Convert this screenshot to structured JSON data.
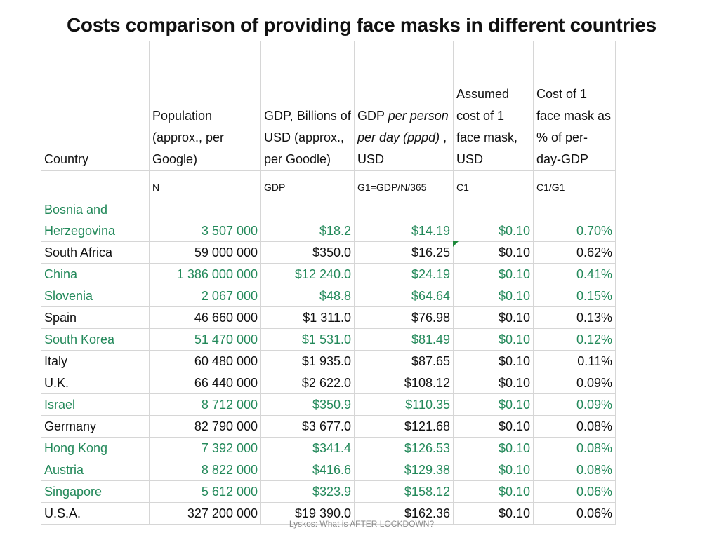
{
  "title": "Costs comparison of providing face masks in different countries",
  "headers": {
    "country": "Country",
    "population": "Population (approx., per Google)",
    "gdp": "GDP, Billions of USD (approx., per Goodle)",
    "gdp_pppd_a": "GDP ",
    "gdp_pppd_b": "per person per day (pppd)",
    "gdp_pppd_c": " , USD",
    "mask_cost": "Assumed cost of 1 face mask, USD",
    "pct": "Cost of 1 face mask as % of per-day-GDP"
  },
  "formulas": [
    "",
    "N",
    "GDP",
    "G1=GDP/N/365",
    "C1",
    "C1/G1"
  ],
  "colors": {
    "green": "#23895a",
    "black": "#111111"
  },
  "rows": [
    {
      "country": "Bosnia and Herzegovina",
      "population": "3 507 000",
      "gdp": "$18.2",
      "pppd": "$14.19",
      "cost": "$0.10",
      "pct": "0.70%",
      "color": "green"
    },
    {
      "country": "South Africa",
      "population": "59 000 000",
      "gdp": "$350.0",
      "pppd": "$16.25",
      "cost": "$0.10",
      "pct": "0.62%",
      "color": "black"
    },
    {
      "country": "China",
      "population": "1 386 000 000",
      "gdp": "$12 240.0",
      "pppd": "$24.19",
      "cost": "$0.10",
      "pct": "0.41%",
      "color": "green"
    },
    {
      "country": "Slovenia",
      "population": "2 067 000",
      "gdp": "$48.8",
      "pppd": "$64.64",
      "cost": "$0.10",
      "pct": "0.15%",
      "color": "green"
    },
    {
      "country": "Spain",
      "population": "46 660 000",
      "gdp": "$1 311.0",
      "pppd": "$76.98",
      "cost": "$0.10",
      "pct": "0.13%",
      "color": "black"
    },
    {
      "country": "South Korea",
      "population": "51 470 000",
      "gdp": "$1 531.0",
      "pppd": "$81.49",
      "cost": "$0.10",
      "pct": "0.12%",
      "color": "green"
    },
    {
      "country": "Italy",
      "population": "60 480 000",
      "gdp": "$1 935.0",
      "pppd": "$87.65",
      "cost": "$0.10",
      "pct": "0.11%",
      "color": "black"
    },
    {
      "country": "U.K.",
      "population": "66 440 000",
      "gdp": "$2 622.0",
      "pppd": "$108.12",
      "cost": "$0.10",
      "pct": "0.09%",
      "color": "black"
    },
    {
      "country": "Israel",
      "population": "8 712 000",
      "gdp": "$350.9",
      "pppd": "$110.35",
      "cost": "$0.10",
      "pct": "0.09%",
      "color": "green"
    },
    {
      "country": "Germany",
      "population": "82 790 000",
      "gdp": "$3 677.0",
      "pppd": "$121.68",
      "cost": "$0.10",
      "pct": "0.08%",
      "color": "black"
    },
    {
      "country": "Hong Kong",
      "population": "7 392 000",
      "gdp": "$341.4",
      "pppd": "$126.53",
      "cost": "$0.10",
      "pct": "0.08%",
      "color": "green"
    },
    {
      "country": "Austria",
      "population": "8 822 000",
      "gdp": "$416.6",
      "pppd": "$129.38",
      "cost": "$0.10",
      "pct": "0.08%",
      "color": "green"
    },
    {
      "country": "Singapore",
      "population": "5 612 000",
      "gdp": "$323.9",
      "pppd": "$158.12",
      "cost": "$0.10",
      "pct": "0.06%",
      "color": "green"
    },
    {
      "country": "U.S.A.",
      "population": "327 200 000",
      "gdp": "$19 390.0",
      "pppd": "$162.36",
      "cost": "$0.10",
      "pct": "0.06%",
      "color": "black"
    }
  ],
  "footer": "Lyskos: What is AFTER LOCKDOWN?"
}
